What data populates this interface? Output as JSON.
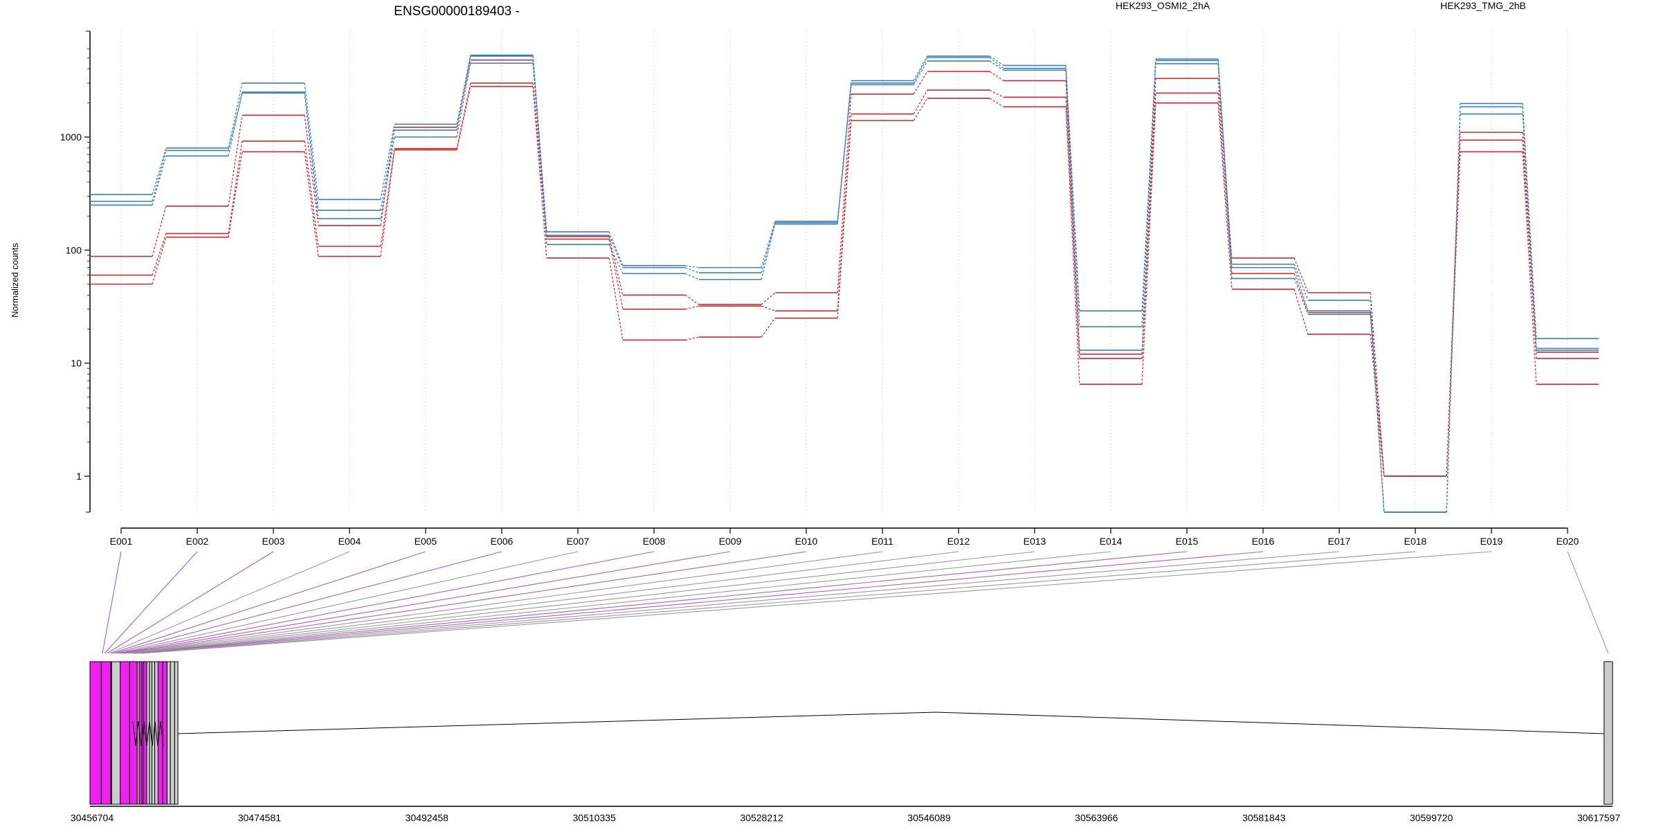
{
  "chart_data": {
    "type": "line",
    "title": "ENSG00000189403 -",
    "ylabel": "Normalized counts",
    "xlabel": "",
    "yscale": "log",
    "ylim": [
      0.4,
      6500
    ],
    "y_ticks": [
      1,
      10,
      100,
      1000
    ],
    "y_tick_labels": [
      "1",
      "10",
      "100",
      "1000"
    ],
    "grid": "vertical dotted lines at exons",
    "legend": [
      {
        "name": "HEK293_OSMI2_2hA",
        "color": "#d62728",
        "placement": "top-center"
      },
      {
        "name": "HEK293_TMG_2hB",
        "color": "#3a7fb8",
        "placement": "top-right"
      }
    ],
    "categories": [
      "E001",
      "E002",
      "E003",
      "E004",
      "E005",
      "E006",
      "E007",
      "E008",
      "E009",
      "E010",
      "E011",
      "E012",
      "E013",
      "E014",
      "E015",
      "E016",
      "E017",
      "E018",
      "E019",
      "E020"
    ],
    "series": [
      {
        "group": "HEK293_OSMI2_2hA",
        "color": "#d62728",
        "values": [
          88,
          245,
          1560,
          165,
          1220,
          4800,
          132,
          40,
          33,
          42,
          2400,
          3800,
          3150,
          12,
          3300,
          85,
          42,
          1,
          1100,
          12.5
        ]
      },
      {
        "group": "HEK293_OSMI2_2hA",
        "color": "#d62728",
        "values": [
          60,
          140,
          920,
          108,
          790,
          3000,
          125,
          30,
          32,
          29,
          1600,
          2600,
          2250,
          11,
          2450,
          62,
          28,
          1,
          940,
          11
        ]
      },
      {
        "group": "HEK293_OSMI2_2hA",
        "color": "#d62728",
        "values": [
          50,
          130,
          740,
          88,
          770,
          2800,
          85,
          16,
          17,
          25,
          1400,
          2200,
          1850,
          6.5,
          2000,
          45,
          18,
          1,
          740,
          6.5
        ]
      },
      {
        "group": "HEK293_TMG_2hB",
        "color": "#3a7fb8",
        "values": [
          310,
          800,
          3000,
          280,
          1300,
          5300,
          145,
          73,
          70,
          180,
          3150,
          5200,
          4300,
          29,
          4900,
          75,
          36,
          0.48,
          1980,
          16.5
        ]
      },
      {
        "group": "HEK293_TMG_2hB",
        "color": "#3a7fb8",
        "values": [
          270,
          760,
          2500,
          225,
          1150,
          5200,
          135,
          70,
          63,
          175,
          3000,
          5050,
          4050,
          21,
          4750,
          70,
          29,
          0.48,
          1850,
          13.5
        ]
      },
      {
        "group": "HEK293_TMG_2hB",
        "color": "#3a7fb8",
        "values": [
          250,
          680,
          2450,
          190,
          1000,
          4500,
          112,
          62,
          55,
          170,
          2900,
          4700,
          3900,
          13,
          4450,
          56,
          27,
          0.48,
          1600,
          13
        ]
      }
    ],
    "gene_track": {
      "genomic_ticks": [
        "30456704",
        "30474581",
        "30492458",
        "30510335",
        "30528212",
        "30546089",
        "30563966",
        "30581843",
        "30599720",
        "30617597"
      ],
      "genomic_range": [
        30456704,
        30617597
      ],
      "exon_colors": {
        "differential": "#ee22ee",
        "normal": "#cccccc",
        "link_differential": "#b05cc0",
        "link_normal": "#999999"
      },
      "exons": [
        {
          "id": "E001",
          "start": 30456704,
          "end": 30457900,
          "differential": true
        },
        {
          "id": "E002",
          "start": 30457900,
          "end": 30458900,
          "differential": true
        },
        {
          "id": "E003",
          "start": 30458900,
          "end": 30459000,
          "differential": true
        },
        {
          "id": "E004",
          "start": 30459000,
          "end": 30459900,
          "differential": false
        },
        {
          "id": "E005",
          "start": 30459900,
          "end": 30460900,
          "differential": true
        },
        {
          "id": "E006",
          "start": 30460900,
          "end": 30461700,
          "differential": true
        },
        {
          "id": "E007",
          "start": 30461700,
          "end": 30461900,
          "differential": false
        },
        {
          "id": "E008",
          "start": 30461900,
          "end": 30462200,
          "differential": true
        },
        {
          "id": "E009",
          "start": 30462200,
          "end": 30462380,
          "differential": true
        },
        {
          "id": "E010",
          "start": 30462380,
          "end": 30462700,
          "differential": true
        },
        {
          "id": "E011",
          "start": 30462700,
          "end": 30463000,
          "differential": false
        },
        {
          "id": "E012",
          "start": 30463000,
          "end": 30463250,
          "differential": false
        },
        {
          "id": "E013",
          "start": 30463250,
          "end": 30463550,
          "differential": false
        },
        {
          "id": "E014",
          "start": 30463550,
          "end": 30463900,
          "differential": false
        },
        {
          "id": "E015",
          "start": 30463900,
          "end": 30464400,
          "differential": true
        },
        {
          "id": "E016",
          "start": 30464400,
          "end": 30464850,
          "differential": true
        },
        {
          "id": "E017",
          "start": 30464850,
          "end": 30465200,
          "differential": false
        },
        {
          "id": "E018",
          "start": 30465200,
          "end": 30465650,
          "differential": false
        },
        {
          "id": "E019",
          "start": 30465650,
          "end": 30466000,
          "differential": false
        },
        {
          "id": "E020",
          "start": 30616700,
          "end": 30617597,
          "differential": false
        }
      ],
      "intron_apex": 30546089
    }
  }
}
